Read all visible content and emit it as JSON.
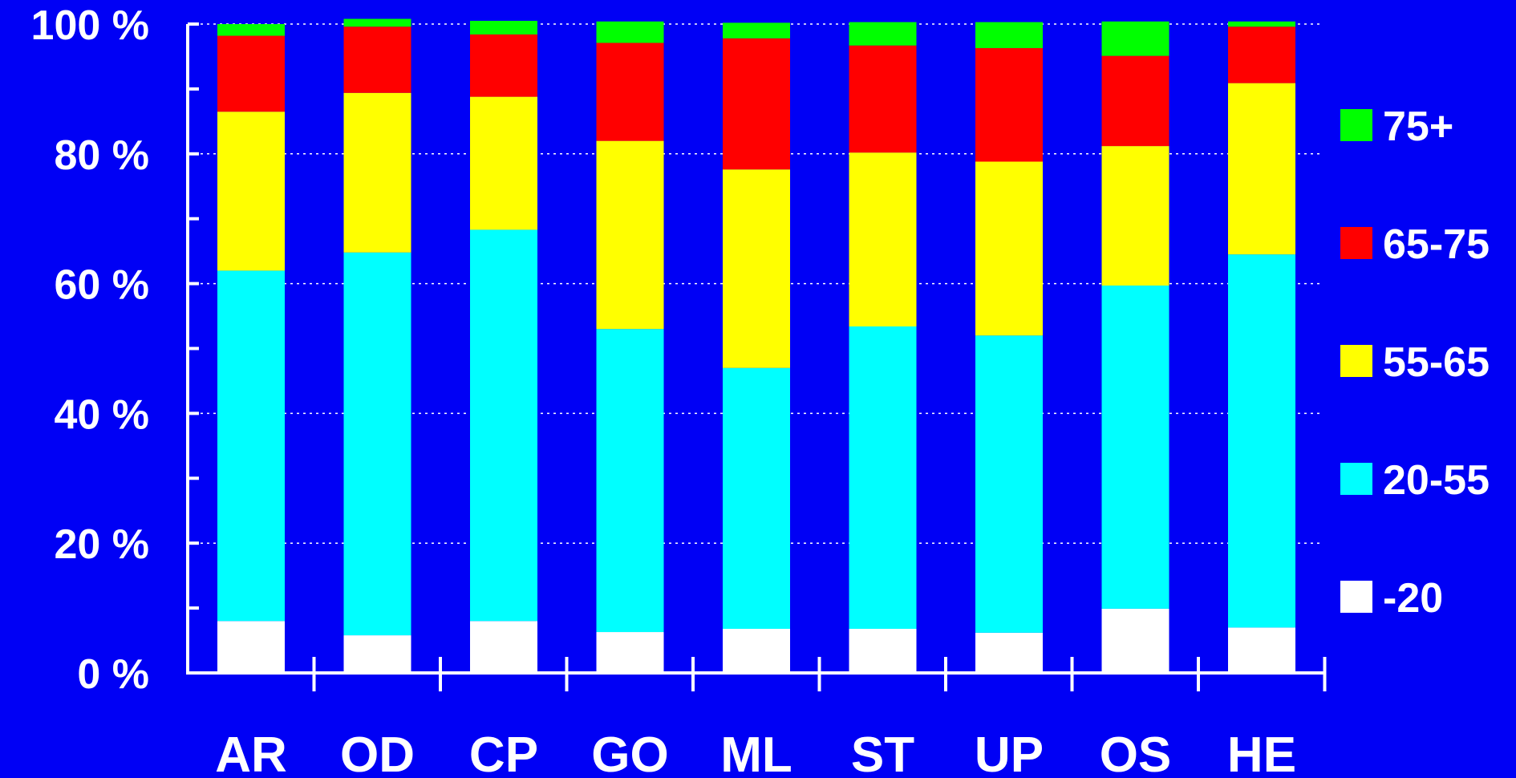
{
  "chart_data": {
    "type": "bar",
    "stacked": true,
    "percent": true,
    "categories": [
      "AR",
      "OD",
      "CP",
      "GO",
      "ML",
      "ST",
      "UP",
      "OS",
      "HE"
    ],
    "series": [
      {
        "name": "-20",
        "color": "#FFFFFF",
        "values": [
          8.0,
          5.8,
          8.0,
          6.3,
          6.8,
          6.8,
          6.2,
          9.9,
          7.0
        ]
      },
      {
        "name": "20-55",
        "color": "#00FFFF",
        "values": [
          54.0,
          59.0,
          60.3,
          46.7,
          40.2,
          46.6,
          45.8,
          49.8,
          57.5
        ]
      },
      {
        "name": "55-65",
        "color": "#FFFF00",
        "values": [
          24.5,
          24.6,
          20.5,
          29.0,
          30.6,
          26.8,
          26.8,
          21.5,
          26.4
        ]
      },
      {
        "name": "65-75",
        "color": "#FF0000",
        "values": [
          11.7,
          10.2,
          9.6,
          15.1,
          20.2,
          16.5,
          17.5,
          13.9,
          8.7
        ]
      },
      {
        "name": "75+",
        "color": "#00FF00",
        "values": [
          1.8,
          1.2,
          2.1,
          3.3,
          2.4,
          3.6,
          4.0,
          5.3,
          0.8
        ]
      }
    ],
    "ylim": [
      0,
      100
    ],
    "yticks": [
      0,
      20,
      40,
      60,
      80,
      100
    ],
    "ytick_labels": [
      "0 %",
      "20 %",
      "40 %",
      "60 %",
      "80 %",
      "100 %"
    ],
    "grid": true,
    "legend_position": "right",
    "title": "",
    "xlabel": "",
    "ylabel": ""
  }
}
